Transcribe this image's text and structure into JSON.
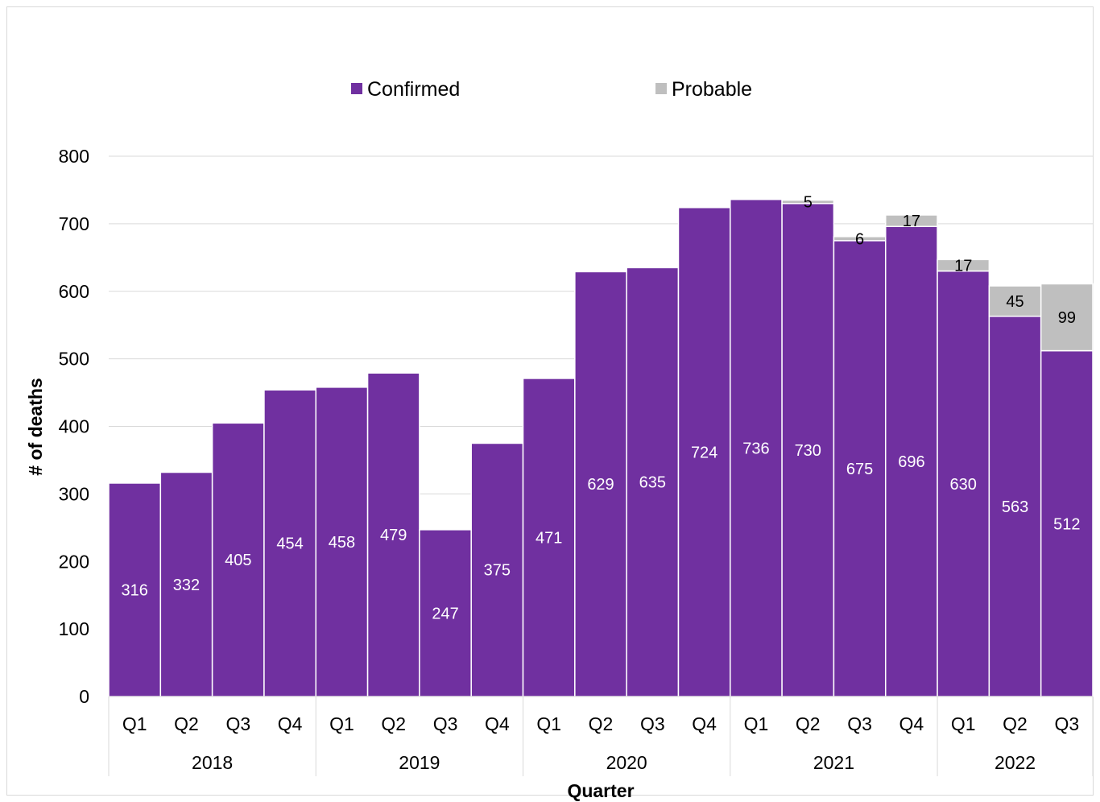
{
  "chart_data": {
    "type": "bar",
    "stacked": true,
    "xlabel": "Quarter",
    "ylabel": "# of deaths",
    "ylim": [
      0,
      800
    ],
    "yticks": [
      0,
      100,
      200,
      300,
      400,
      500,
      600,
      700,
      800
    ],
    "grid": true,
    "legend": {
      "placement": "top-center",
      "entries": [
        "Confirmed",
        "Probable"
      ]
    },
    "years": [
      {
        "label": "2018",
        "quarters": 4
      },
      {
        "label": "2019",
        "quarters": 4
      },
      {
        "label": "2020",
        "quarters": 4
      },
      {
        "label": "2021",
        "quarters": 4
      },
      {
        "label": "2022",
        "quarters": 3
      }
    ],
    "categories": [
      "Q1",
      "Q2",
      "Q3",
      "Q4",
      "Q1",
      "Q2",
      "Q3",
      "Q4",
      "Q1",
      "Q2",
      "Q3",
      "Q4",
      "Q1",
      "Q2",
      "Q3",
      "Q4",
      "Q1",
      "Q2",
      "Q3"
    ],
    "series": [
      {
        "name": "Confirmed",
        "color": "#7030a0",
        "values": [
          316,
          332,
          405,
          454,
          458,
          479,
          247,
          375,
          471,
          629,
          635,
          724,
          736,
          730,
          675,
          696,
          630,
          563,
          512
        ]
      },
      {
        "name": "Probable",
        "color": "#bfbfbf",
        "values": [
          null,
          null,
          null,
          null,
          null,
          null,
          null,
          null,
          null,
          null,
          null,
          null,
          null,
          5,
          6,
          17,
          17,
          45,
          99
        ]
      }
    ]
  }
}
